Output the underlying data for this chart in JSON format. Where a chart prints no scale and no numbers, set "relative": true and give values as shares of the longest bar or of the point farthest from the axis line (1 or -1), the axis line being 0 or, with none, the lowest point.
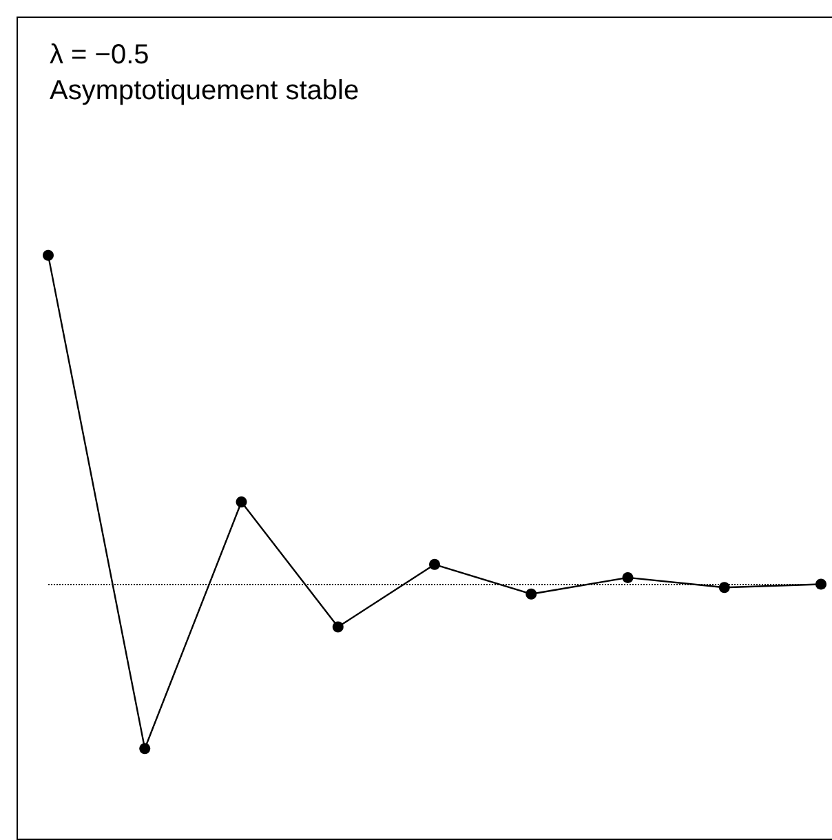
{
  "chart_data": {
    "type": "line",
    "relative": true,
    "title": "λ = −0.5",
    "subtitle": "Asymptotiquement stable",
    "categories": [
      null,
      null,
      null,
      null,
      null,
      null,
      null,
      null,
      null
    ],
    "series": [
      {
        "color": "#000000",
        "values": [
          1,
          -0.5,
          0.25,
          -0.13,
          0.06,
          -0.03,
          0.02,
          -0.01,
          0
        ]
      }
    ],
    "ref_lines": [
      {
        "axis": "y",
        "value": 0,
        "color": "#000000",
        "line_style": "dotted"
      }
    ],
    "marker": "circle",
    "line_style": "solid"
  }
}
